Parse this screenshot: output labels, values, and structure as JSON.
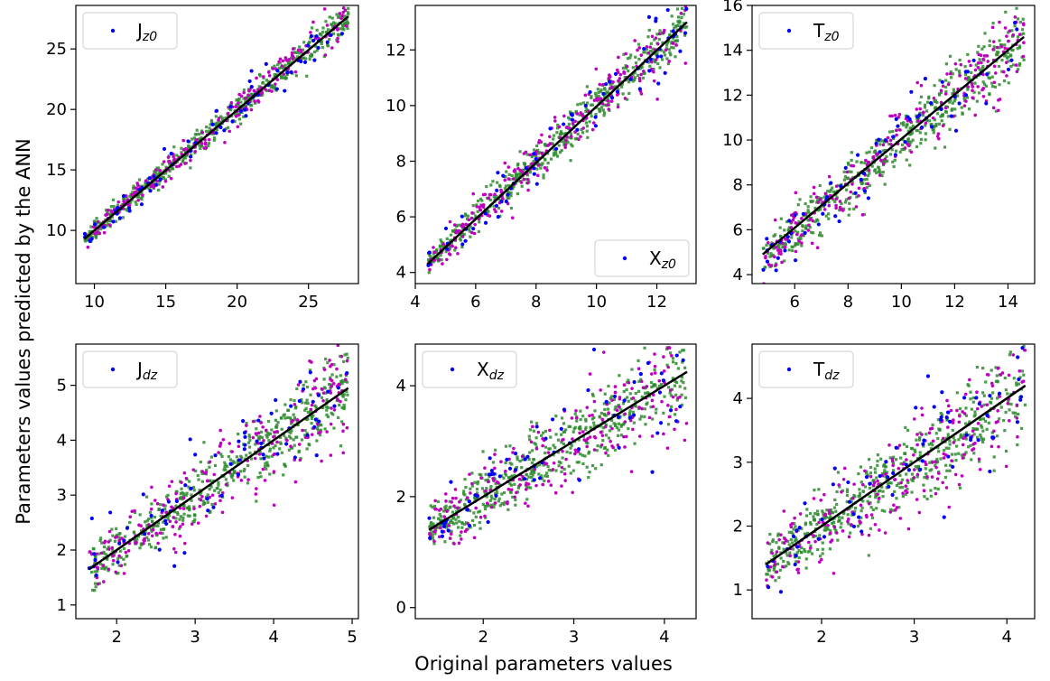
{
  "figure": {
    "xlabel": "Original parameters values",
    "ylabel": "Parameters values predicted by the ANN"
  },
  "colors": {
    "blue": "#0000ff",
    "magenta": "#bf00bf",
    "green": "#2e8b2e",
    "fit_line": "#000000",
    "axes": "#000000"
  },
  "chart_data": [
    {
      "type": "scatter",
      "title": "",
      "legend": {
        "base": "J",
        "sub": "z0",
        "placement": "upper left"
      },
      "xlim": [
        8.7,
        28.5
      ],
      "ylim": [
        5.6,
        28.6
      ],
      "xticks": [
        10,
        15,
        20,
        25
      ],
      "yticks": [
        10,
        15,
        20,
        25
      ],
      "range": [
        9.3,
        27.8
      ],
      "fit_line": {
        "x": [
          9.3,
          27.8
        ],
        "y": [
          9.3,
          27.7
        ]
      },
      "noise": {
        "blue": 0.8,
        "magenta": 0.7,
        "green": 0.55
      },
      "series": [
        {
          "name": "J_z0",
          "color": "#0000ff"
        },
        {
          "color": "#bf00bf"
        },
        {
          "color": "#2e8b2e"
        }
      ]
    },
    {
      "type": "scatter",
      "title": "",
      "legend": {
        "base": "X",
        "sub": "z0",
        "placement": "lower right"
      },
      "xlim": [
        4.0,
        13.3
      ],
      "ylim": [
        3.6,
        13.6
      ],
      "xticks": [
        4,
        6,
        8,
        10,
        12
      ],
      "yticks": [
        4,
        6,
        8,
        10,
        12
      ],
      "range": [
        4.4,
        13.0
      ],
      "fit_line": {
        "x": [
          4.4,
          13.0
        ],
        "y": [
          4.3,
          13.0
        ]
      },
      "noise": {
        "blue": 0.6,
        "magenta": 0.5,
        "green": 0.4
      },
      "series": [
        {
          "name": "X_z0",
          "color": "#0000ff"
        },
        {
          "color": "#bf00bf"
        },
        {
          "color": "#2e8b2e"
        }
      ]
    },
    {
      "type": "scatter",
      "title": "",
      "legend": {
        "base": "T",
        "sub": "z0",
        "placement": "upper left"
      },
      "xlim": [
        4.4,
        15.0
      ],
      "ylim": [
        3.6,
        16.0
      ],
      "xticks": [
        6,
        8,
        10,
        12,
        14
      ],
      "yticks": [
        4,
        6,
        8,
        10,
        12,
        14,
        16
      ],
      "range": [
        4.8,
        14.6
      ],
      "fit_line": {
        "x": [
          4.8,
          14.6
        ],
        "y": [
          4.9,
          14.6
        ]
      },
      "noise": {
        "blue": 0.9,
        "magenta": 0.8,
        "green": 0.7
      },
      "series": [
        {
          "name": "T_z0",
          "color": "#0000ff"
        },
        {
          "color": "#bf00bf"
        },
        {
          "color": "#2e8b2e"
        }
      ]
    },
    {
      "type": "scatter",
      "title": "",
      "legend": {
        "base": "J",
        "sub": "dz",
        "placement": "upper left"
      },
      "xlim": [
        1.48,
        5.08
      ],
      "ylim": [
        0.75,
        5.75
      ],
      "xticks": [
        2,
        3,
        4,
        5
      ],
      "yticks": [
        1,
        2,
        3,
        4,
        5
      ],
      "range": [
        1.65,
        4.95
      ],
      "fit_line": {
        "x": [
          1.65,
          4.95
        ],
        "y": [
          1.65,
          4.95
        ]
      },
      "noise": {
        "blue": 0.55,
        "magenta": 0.4,
        "green": 0.3
      },
      "series": [
        {
          "name": "J_dz",
          "color": "#0000ff"
        },
        {
          "color": "#bf00bf"
        },
        {
          "color": "#2e8b2e"
        }
      ]
    },
    {
      "type": "scatter",
      "title": "",
      "legend": {
        "base": "X",
        "sub": "dz",
        "placement": "upper left"
      },
      "xlim": [
        1.25,
        4.35
      ],
      "ylim": [
        -0.2,
        4.75
      ],
      "xticks": [
        2,
        3,
        4
      ],
      "yticks": [
        0,
        2,
        4
      ],
      "range": [
        1.4,
        4.25
      ],
      "fit_line": {
        "x": [
          1.4,
          4.25
        ],
        "y": [
          1.4,
          4.25
        ]
      },
      "noise": {
        "blue": 0.55,
        "magenta": 0.45,
        "green": 0.35
      },
      "series": [
        {
          "name": "X_dz",
          "color": "#0000ff"
        },
        {
          "color": "#bf00bf"
        },
        {
          "color": "#2e8b2e"
        }
      ]
    },
    {
      "type": "scatter",
      "title": "",
      "legend": {
        "base": "T",
        "sub": "dz",
        "placement": "upper left"
      },
      "xlim": [
        1.25,
        4.3
      ],
      "ylim": [
        0.55,
        4.85
      ],
      "xticks": [
        2,
        3,
        4
      ],
      "yticks": [
        1,
        2,
        3,
        4
      ],
      "range": [
        1.4,
        4.2
      ],
      "fit_line": {
        "x": [
          1.4,
          4.2
        ],
        "y": [
          1.4,
          4.2
        ]
      },
      "noise": {
        "blue": 0.45,
        "magenta": 0.42,
        "green": 0.32
      },
      "series": [
        {
          "name": "T_dz",
          "color": "#0000ff"
        },
        {
          "color": "#bf00bf"
        },
        {
          "color": "#2e8b2e"
        }
      ]
    }
  ]
}
